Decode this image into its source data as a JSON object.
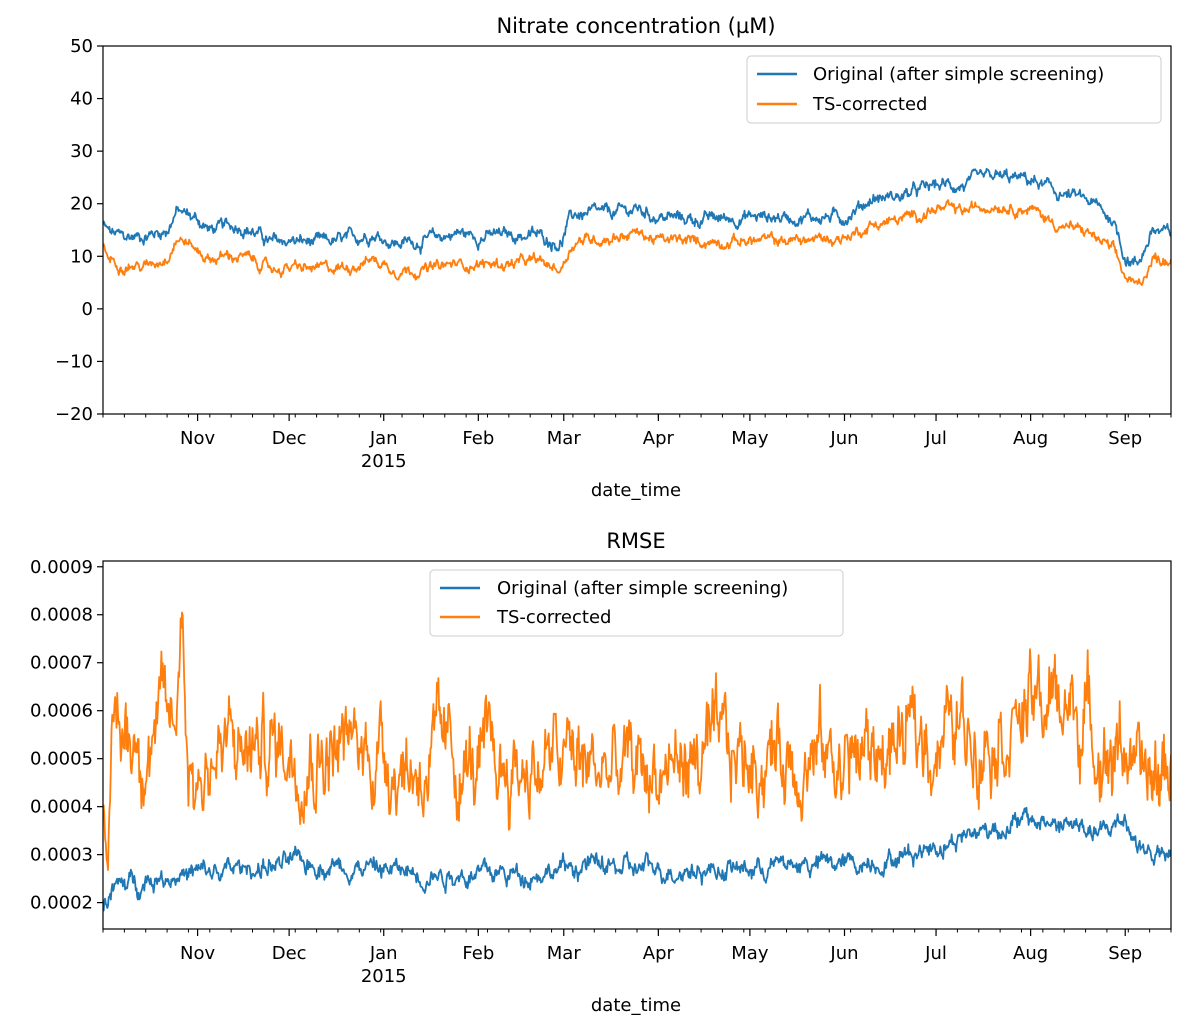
{
  "chart_data": [
    {
      "type": "line",
      "title": "Nitrate concentration (µM)",
      "xlabel": "date_time",
      "ylabel": "",
      "ylim": [
        -20,
        50
      ],
      "xlim": [
        "2014-10-01",
        "2015-09-16"
      ],
      "yticks": [
        "−20",
        "−10",
        "0",
        "10",
        "20",
        "30",
        "40",
        "50"
      ],
      "xticks": [
        {
          "date": "2014-11-01",
          "label": "Nov",
          "sublabel": ""
        },
        {
          "date": "2014-12-01",
          "label": "Dec",
          "sublabel": ""
        },
        {
          "date": "2015-01-01",
          "label": "Jan",
          "sublabel": "2015"
        },
        {
          "date": "2015-02-01",
          "label": "Feb",
          "sublabel": ""
        },
        {
          "date": "2015-03-01",
          "label": "Mar",
          "sublabel": ""
        },
        {
          "date": "2015-04-01",
          "label": "Apr",
          "sublabel": ""
        },
        {
          "date": "2015-05-01",
          "label": "May",
          "sublabel": ""
        },
        {
          "date": "2015-06-01",
          "label": "Jun",
          "sublabel": ""
        },
        {
          "date": "2015-07-01",
          "label": "Jul",
          "sublabel": ""
        },
        {
          "date": "2015-08-01",
          "label": "Aug",
          "sublabel": ""
        },
        {
          "date": "2015-09-01",
          "label": "Sep",
          "sublabel": ""
        }
      ],
      "legend_position": "upper-right",
      "grid": false,
      "series": [
        {
          "name": "Original (after simple screening)",
          "color": "#1f77b4",
          "noise": 0.7,
          "x": [
            "2014-10-01",
            "2014-10-03",
            "2014-10-08",
            "2014-10-15",
            "2014-10-22",
            "2014-10-25",
            "2014-10-28",
            "2014-11-01",
            "2014-11-05",
            "2014-11-10",
            "2014-11-15",
            "2014-11-20",
            "2014-11-25",
            "2014-12-01",
            "2014-12-10",
            "2014-12-20",
            "2014-12-28",
            "2015-01-05",
            "2015-01-15",
            "2015-01-25",
            "2015-02-01",
            "2015-02-10",
            "2015-02-20",
            "2015-02-28",
            "2015-03-03",
            "2015-03-05",
            "2015-03-15",
            "2015-03-25",
            "2015-04-01",
            "2015-04-15",
            "2015-05-01",
            "2015-05-15",
            "2015-06-01",
            "2015-06-10",
            "2015-06-20",
            "2015-07-01",
            "2015-07-10",
            "2015-07-20",
            "2015-08-01",
            "2015-08-10",
            "2015-08-20",
            "2015-08-28",
            "2015-09-01",
            "2015-09-05",
            "2015-09-10",
            "2015-09-16"
          ],
          "y": [
            16,
            14.5,
            13.5,
            14,
            15,
            18.5,
            18,
            17,
            15,
            15.5,
            16,
            14.5,
            12.5,
            13,
            12.5,
            13,
            14.5,
            12.5,
            13,
            14.5,
            13.8,
            14,
            14,
            12.5,
            17,
            18,
            18,
            19,
            17.5,
            17,
            17.5,
            17.5,
            17.5,
            21,
            21.5,
            23.5,
            23.5,
            25,
            24.5,
            22,
            20.5,
            17,
            10,
            8.5,
            15,
            14
          ]
        },
        {
          "name": "TS-corrected",
          "color": "#ff7f0e",
          "noise": 0.6,
          "x": [
            "2014-10-01",
            "2014-10-03",
            "2014-10-08",
            "2014-10-15",
            "2014-10-22",
            "2014-10-25",
            "2014-10-28",
            "2014-11-01",
            "2014-11-05",
            "2014-11-10",
            "2014-11-15",
            "2014-11-20",
            "2014-11-25",
            "2014-12-01",
            "2014-12-10",
            "2014-12-20",
            "2014-12-28",
            "2015-01-05",
            "2015-01-15",
            "2015-01-25",
            "2015-02-01",
            "2015-02-10",
            "2015-02-20",
            "2015-02-28",
            "2015-03-03",
            "2015-03-05",
            "2015-03-15",
            "2015-03-25",
            "2015-04-01",
            "2015-04-15",
            "2015-05-01",
            "2015-05-15",
            "2015-06-01",
            "2015-06-10",
            "2015-06-20",
            "2015-07-01",
            "2015-07-10",
            "2015-07-20",
            "2015-08-01",
            "2015-08-10",
            "2015-08-20",
            "2015-08-28",
            "2015-09-01",
            "2015-09-05",
            "2015-09-10",
            "2015-09-16"
          ],
          "y": [
            12,
            9.5,
            8.5,
            8,
            10,
            13.5,
            13,
            11,
            9.5,
            10,
            10,
            9,
            7.5,
            7.8,
            7.5,
            8,
            9.5,
            7.5,
            7.5,
            8.5,
            8.5,
            8.5,
            9,
            7.5,
            11.5,
            13,
            13.5,
            14.5,
            13,
            12.8,
            13,
            13,
            13.5,
            16,
            17,
            19,
            18.5,
            20,
            19,
            16,
            14.5,
            11,
            6,
            4,
            9.5,
            9.5
          ]
        }
      ]
    },
    {
      "type": "line",
      "title": "RMSE",
      "xlabel": "date_time",
      "ylabel": "",
      "ylim": [
        0.000145,
        0.000912
      ],
      "xlim": [
        "2014-10-01",
        "2015-09-16"
      ],
      "yticks": [
        "0.0002",
        "0.0003",
        "0.0004",
        "0.0005",
        "0.0006",
        "0.0007",
        "0.0008",
        "0.0009"
      ],
      "xticks": [
        {
          "date": "2014-11-01",
          "label": "Nov",
          "sublabel": ""
        },
        {
          "date": "2014-12-01",
          "label": "Dec",
          "sublabel": ""
        },
        {
          "date": "2015-01-01",
          "label": "Jan",
          "sublabel": "2015"
        },
        {
          "date": "2015-02-01",
          "label": "Feb",
          "sublabel": ""
        },
        {
          "date": "2015-03-01",
          "label": "Mar",
          "sublabel": ""
        },
        {
          "date": "2015-04-01",
          "label": "Apr",
          "sublabel": ""
        },
        {
          "date": "2015-05-01",
          "label": "May",
          "sublabel": ""
        },
        {
          "date": "2015-06-01",
          "label": "Jun",
          "sublabel": ""
        },
        {
          "date": "2015-07-01",
          "label": "Jul",
          "sublabel": ""
        },
        {
          "date": "2015-08-01",
          "label": "Aug",
          "sublabel": ""
        },
        {
          "date": "2015-09-01",
          "label": "Sep",
          "sublabel": ""
        }
      ],
      "legend_position": "upper-center",
      "grid": false,
      "series": [
        {
          "name": "TS-corrected",
          "color": "#ff7f0e",
          "noise": 5e-05,
          "draw_order": 0,
          "x": [
            "2014-10-01",
            "2014-10-03",
            "2014-10-05",
            "2014-10-15",
            "2014-10-25",
            "2014-10-27",
            "2014-10-29",
            "2014-11-01",
            "2014-11-05",
            "2014-11-15",
            "2014-12-01",
            "2014-12-15",
            "2015-01-01",
            "2015-01-10",
            "2015-01-20",
            "2015-02-01",
            "2015-02-15",
            "2015-03-01",
            "2015-03-10",
            "2015-03-20",
            "2015-04-01",
            "2015-04-15",
            "2015-05-01",
            "2015-05-15",
            "2015-06-01",
            "2015-06-15",
            "2015-07-01",
            "2015-07-15",
            "2015-08-01",
            "2015-08-10",
            "2015-08-20",
            "2015-08-28",
            "2015-09-01",
            "2015-09-05",
            "2015-09-10",
            "2015-09-16"
          ],
          "y": [
            0.00045,
            0.00038,
            0.00055,
            0.00055,
            0.00058,
            0.00085,
            0.0005,
            0.00045,
            0.0005,
            0.00052,
            0.00053,
            0.00052,
            0.00052,
            0.00048,
            0.0005,
            0.00047,
            0.00048,
            0.0005,
            0.00048,
            0.00047,
            0.00048,
            0.0005,
            0.0005,
            0.00052,
            0.0005,
            0.00052,
            0.00055,
            0.00057,
            0.0006,
            0.00062,
            0.00058,
            0.0005,
            0.00055,
            0.00043,
            0.00045,
            0.0005
          ]
        },
        {
          "name": "Original (after simple screening)",
          "color": "#1f77b4",
          "noise": 1.2e-05,
          "draw_order": 1,
          "x": [
            "2014-10-01",
            "2014-10-05",
            "2014-10-15",
            "2014-10-25",
            "2014-11-05",
            "2014-11-15",
            "2014-12-01",
            "2014-12-15",
            "2015-01-01",
            "2015-01-15",
            "2015-02-01",
            "2015-02-15",
            "2015-03-01",
            "2015-03-10",
            "2015-03-20",
            "2015-04-01",
            "2015-04-15",
            "2015-05-01",
            "2015-05-15",
            "2015-06-01",
            "2015-06-15",
            "2015-07-01",
            "2015-07-15",
            "2015-08-01",
            "2015-08-15",
            "2015-08-25",
            "2015-09-01",
            "2015-09-05",
            "2015-09-10",
            "2015-09-16"
          ],
          "y": [
            0.0002,
            0.00023,
            0.00025,
            0.00026,
            0.00026,
            0.00027,
            0.00028,
            0.00028,
            0.00027,
            0.00026,
            0.00026,
            0.00026,
            0.00027,
            0.00028,
            0.00027,
            0.00027,
            0.00027,
            0.00027,
            0.00028,
            0.00028,
            0.00029,
            0.00032,
            0.00035,
            0.00037,
            0.00036,
            0.00034,
            0.00038,
            0.00032,
            0.0003,
            0.00029
          ]
        }
      ]
    }
  ]
}
